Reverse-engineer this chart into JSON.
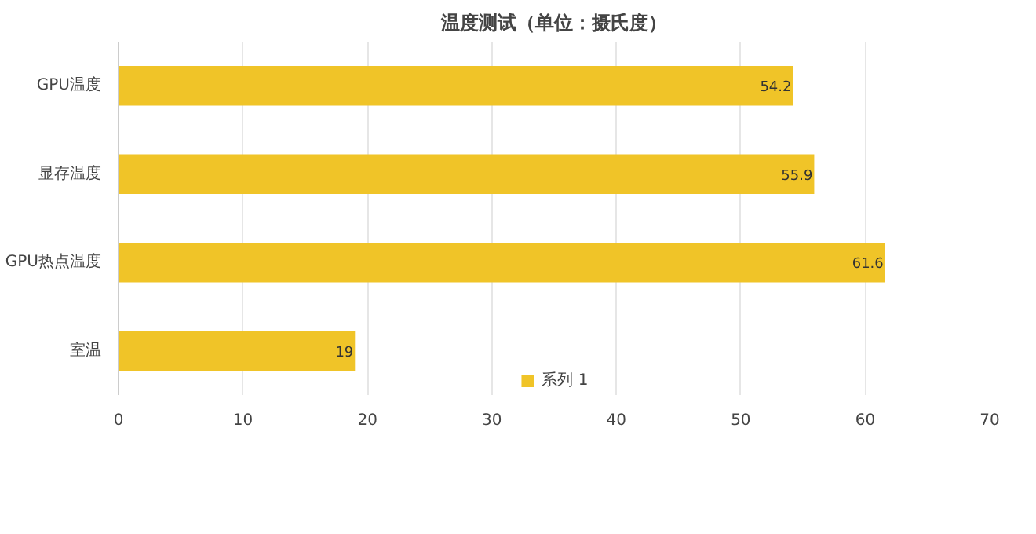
{
  "chart_data": {
    "type": "bar",
    "orientation": "horizontal",
    "title": "温度测试（单位：摄氏度）",
    "categories": [
      "GPU温度",
      "显存温度",
      "GPU热点温度",
      "室温"
    ],
    "series": [
      {
        "name": "系列 1",
        "color": "#f0c428",
        "values": [
          54.2,
          55.9,
          61.6,
          19
        ]
      }
    ],
    "xlim": [
      0,
      70
    ],
    "xticks": [
      0,
      10,
      20,
      30,
      40,
      50,
      60,
      70
    ],
    "grid": "x",
    "legend": "bottom",
    "data_labels": true
  }
}
